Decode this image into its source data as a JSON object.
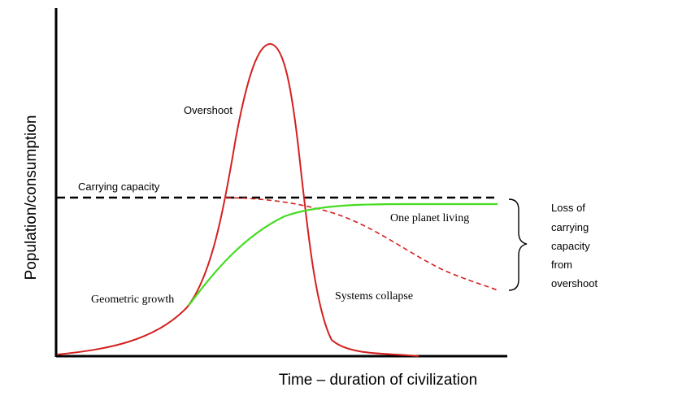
{
  "diagram": {
    "y_axis_label": "Population/consumption",
    "x_axis_label": "Time – duration of civilization",
    "labels": {
      "overshoot": "Overshoot",
      "carrying_capacity": "Carrying capacity",
      "one_planet_living": "One planet living",
      "geometric_growth": "Geometric growth",
      "systems_collapse": "Systems collapse",
      "loss_of_capacity": [
        "Loss of",
        "carrying",
        "capacity",
        "from",
        "overshoot"
      ]
    },
    "colors": {
      "overshoot_curve": "#d42020",
      "one_planet_curve": "#44dd22",
      "capacity_line": "#000000",
      "axes": "#000000"
    }
  }
}
